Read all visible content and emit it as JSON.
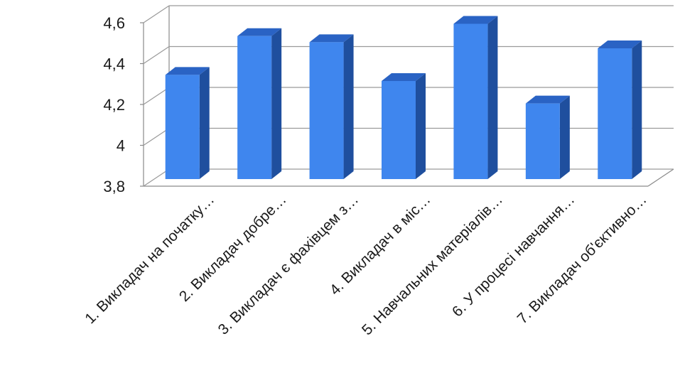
{
  "chart_data": {
    "type": "bar",
    "categories": [
      "1. Викладач на початку…",
      "2. Викладач добре…",
      "3. Викладач є фахівцем з…",
      "4. Викладач в міс…",
      "5. Навчальних матеріалів…",
      "6. У процесі навчання…",
      "7. Викладач об'єктивно…"
    ],
    "values": [
      4.31,
      4.5,
      4.47,
      4.28,
      4.56,
      4.17,
      4.44
    ],
    "yticks": [
      "3,8",
      "4",
      "4,2",
      "4,4",
      "4,6"
    ],
    "ylim": [
      3.8,
      4.6
    ],
    "grid": true,
    "colors": {
      "bar_front": "#3f86ee",
      "bar_side": "#1f4f9e",
      "bar_top": "#2a63c4",
      "grid": "#9a9a9a",
      "axis": "#8a8a8a"
    }
  }
}
